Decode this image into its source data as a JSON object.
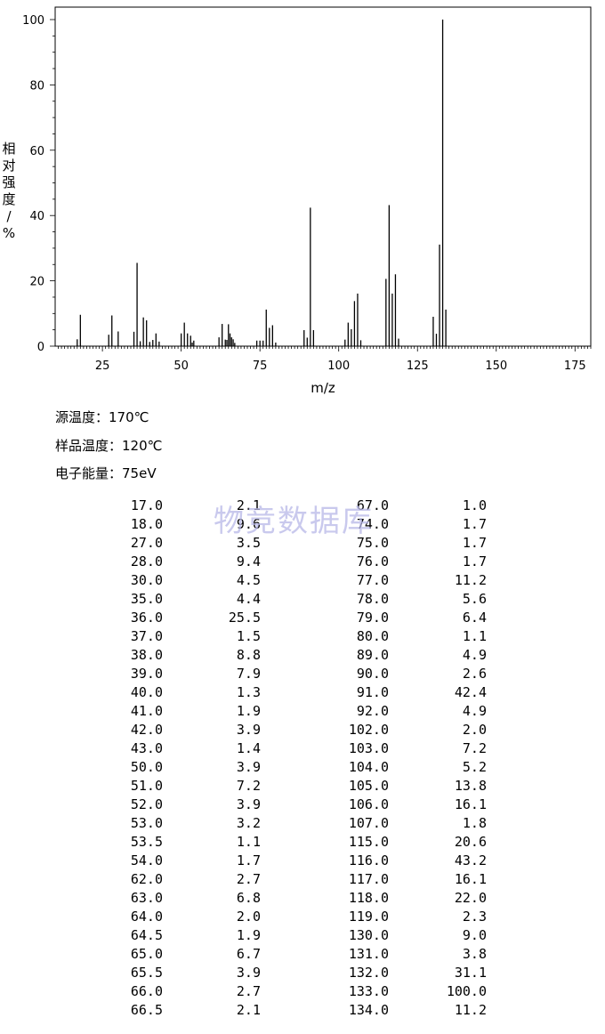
{
  "chart_data": {
    "type": "bar",
    "xlabel": "m/z",
    "ylabel": "相对强度/%",
    "xlim": [
      10,
      180
    ],
    "ylim": [
      0,
      100
    ],
    "x_ticks": [
      "25",
      "50",
      "75",
      "100",
      "125",
      "150",
      "175"
    ],
    "y_ticks": [
      "0",
      "20",
      "40",
      "60",
      "80",
      "100"
    ],
    "grid": false,
    "x": [
      17.0,
      18.0,
      27.0,
      28.0,
      30.0,
      35.0,
      36.0,
      37.0,
      38.0,
      39.0,
      40.0,
      41.0,
      42.0,
      43.0,
      50.0,
      51.0,
      52.0,
      53.0,
      53.5,
      54.0,
      62.0,
      63.0,
      64.0,
      64.5,
      65.0,
      65.5,
      66.0,
      66.5,
      67.0,
      74.0,
      75.0,
      76.0,
      77.0,
      78.0,
      79.0,
      80.0,
      89.0,
      90.0,
      91.0,
      92.0,
      102.0,
      103.0,
      104.0,
      105.0,
      106.0,
      107.0,
      115.0,
      116.0,
      117.0,
      118.0,
      119.0,
      130.0,
      131.0,
      132.0,
      133.0,
      134.0
    ],
    "values": [
      2.1,
      9.6,
      3.5,
      9.4,
      4.5,
      4.4,
      25.5,
      1.5,
      8.8,
      7.9,
      1.3,
      1.9,
      3.9,
      1.4,
      3.9,
      7.2,
      3.9,
      3.2,
      1.1,
      1.7,
      2.7,
      6.8,
      2.0,
      1.9,
      6.7,
      3.9,
      2.7,
      2.1,
      1.0,
      1.7,
      1.7,
      1.7,
      11.2,
      5.6,
      6.4,
      1.1,
      4.9,
      2.6,
      42.4,
      4.9,
      2.0,
      7.2,
      5.2,
      13.8,
      16.1,
      1.8,
      20.6,
      43.2,
      16.1,
      22.0,
      2.3,
      9.0,
      3.8,
      31.1,
      100.0,
      11.2
    ]
  },
  "info": {
    "source_temp": "源温度：170℃",
    "sample_temp": "样品温度：120℃",
    "electron_energy": "电子能量：75eV"
  },
  "watermark": "物竞数据库",
  "table": {
    "rows": [
      [
        "17.0",
        "2.1",
        "67.0",
        "1.0"
      ],
      [
        "18.0",
        "9.6",
        "74.0",
        "1.7"
      ],
      [
        "27.0",
        "3.5",
        "75.0",
        "1.7"
      ],
      [
        "28.0",
        "9.4",
        "76.0",
        "1.7"
      ],
      [
        "30.0",
        "4.5",
        "77.0",
        "11.2"
      ],
      [
        "35.0",
        "4.4",
        "78.0",
        "5.6"
      ],
      [
        "36.0",
        "25.5",
        "79.0",
        "6.4"
      ],
      [
        "37.0",
        "1.5",
        "80.0",
        "1.1"
      ],
      [
        "38.0",
        "8.8",
        "89.0",
        "4.9"
      ],
      [
        "39.0",
        "7.9",
        "90.0",
        "2.6"
      ],
      [
        "40.0",
        "1.3",
        "91.0",
        "42.4"
      ],
      [
        "41.0",
        "1.9",
        "92.0",
        "4.9"
      ],
      [
        "42.0",
        "3.9",
        "102.0",
        "2.0"
      ],
      [
        "43.0",
        "1.4",
        "103.0",
        "7.2"
      ],
      [
        "50.0",
        "3.9",
        "104.0",
        "5.2"
      ],
      [
        "51.0",
        "7.2",
        "105.0",
        "13.8"
      ],
      [
        "52.0",
        "3.9",
        "106.0",
        "16.1"
      ],
      [
        "53.0",
        "3.2",
        "107.0",
        "1.8"
      ],
      [
        "53.5",
        "1.1",
        "115.0",
        "20.6"
      ],
      [
        "54.0",
        "1.7",
        "116.0",
        "43.2"
      ],
      [
        "62.0",
        "2.7",
        "117.0",
        "16.1"
      ],
      [
        "63.0",
        "6.8",
        "118.0",
        "22.0"
      ],
      [
        "64.0",
        "2.0",
        "119.0",
        "2.3"
      ],
      [
        "64.5",
        "1.9",
        "130.0",
        "9.0"
      ],
      [
        "65.0",
        "6.7",
        "131.0",
        "3.8"
      ],
      [
        "65.5",
        "3.9",
        "132.0",
        "31.1"
      ],
      [
        "66.0",
        "2.7",
        "133.0",
        "100.0"
      ],
      [
        "66.5",
        "2.1",
        "134.0",
        "11.2"
      ]
    ]
  }
}
